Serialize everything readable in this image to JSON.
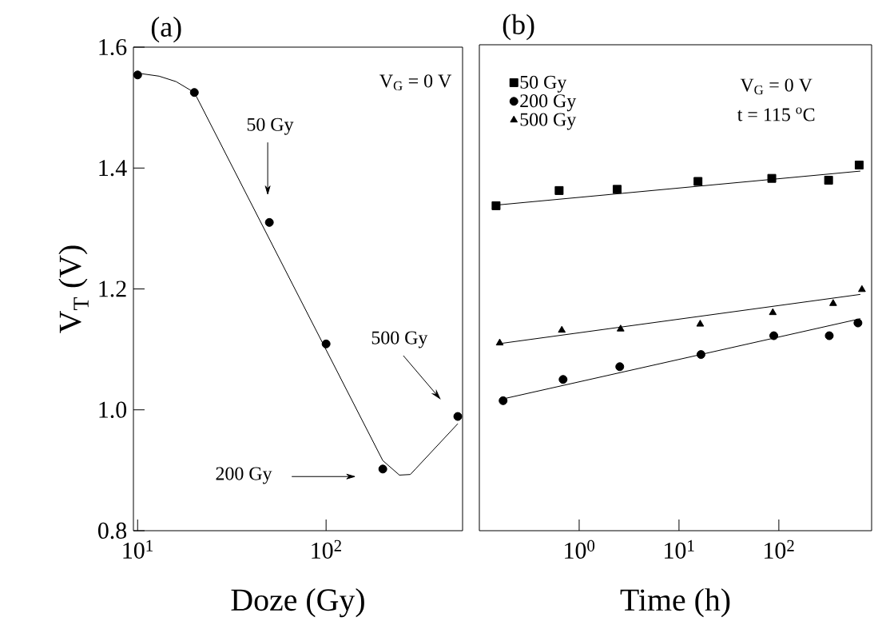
{
  "chart_data": [
    {
      "type": "scatter",
      "title": "(a)",
      "xlabel": "Doze (Gy)",
      "ylabel": "V$_{T}$ (V)",
      "log": "x",
      "xlim": [
        9.5,
        530
      ],
      "ylim": [
        0.8,
        1.6
      ],
      "xticks": [
        {
          "value": 10,
          "label": "10$^{1}$"
        },
        {
          "value": 100,
          "label": "10$^{2}$"
        }
      ],
      "yticks": [
        {
          "value": 0.8,
          "label": "0.8"
        },
        {
          "value": 1.0,
          "label": "1.0"
        },
        {
          "value": 1.2,
          "label": "1.2"
        },
        {
          "value": 1.4,
          "label": "1.4"
        },
        {
          "value": 1.6,
          "label": "1.6"
        }
      ],
      "series": [
        {
          "marker": "circle",
          "color": "#000000",
          "x": [
            10,
            20,
            50,
            100,
            200,
            500
          ],
          "values": [
            1.554,
            1.525,
            1.31,
            1.109,
            0.902,
            0.989
          ]
        },
        {
          "type": "line",
          "color": "#000000",
          "x": [
            10,
            13,
            16,
            20,
            200,
            245,
            280,
            298,
            500
          ],
          "values": [
            1.557,
            1.552,
            1.543,
            1.525,
            0.916,
            0.892,
            0.893,
            0.902,
            0.977
          ]
        }
      ],
      "annotations": [
        "V$_{G}$ = 0 V",
        "50 Gy",
        "200 Gy",
        "500 Gy"
      ]
    },
    {
      "type": "scatter",
      "title": "(b)",
      "xlabel": "Time (h)",
      "log": "x",
      "tick_labels": "x",
      "legend": "top left",
      "xlim": [
        0.1,
        850
      ],
      "ylim": [
        0.8,
        1.6
      ],
      "xticks": [
        {
          "value": 1,
          "label": "10$^{0}$"
        },
        {
          "value": 10,
          "label": "10$^{1}$"
        },
        {
          "value": 100,
          "label": "10$^{2}$"
        }
      ],
      "series": [
        {
          "name": "50 Gy",
          "marker": "square",
          "color": "#000000",
          "x": [
            0.147,
            0.63,
            2.4,
            15.5,
            85,
            315,
            638
          ],
          "values": [
            1.335,
            1.36,
            1.362,
            1.375,
            1.38,
            1.377,
            1.402
          ]
        },
        {
          "name": "200 Gy",
          "marker": "circle",
          "color": "#000000",
          "x": [
            0.173,
            0.69,
            2.55,
            16.6,
            89,
            320,
            620
          ],
          "values": [
            1.014,
            1.049,
            1.07,
            1.09,
            1.121,
            1.121,
            1.142
          ]
        },
        {
          "name": "500 Gy",
          "marker": "triangle",
          "color": "#000000",
          "x": [
            0.16,
            0.67,
            2.6,
            16.3,
            87,
            350,
            680
          ],
          "values": [
            1.109,
            1.13,
            1.132,
            1.14,
            1.159,
            1.174,
            1.197
          ]
        },
        {
          "type": "line",
          "color": "#000000",
          "x": [
            0.147,
            656
          ],
          "values": [
            1.336,
            1.392
          ]
        },
        {
          "type": "line",
          "color": "#000000",
          "x": [
            0.173,
            656
          ],
          "values": [
            1.017,
            1.149
          ]
        },
        {
          "type": "line",
          "color": "#000000",
          "x": [
            0.16,
            656
          ],
          "values": [
            1.108,
            1.189
          ]
        }
      ],
      "annotations": [
        "V$_{G}$ = 0 V",
        "t = 115 $^{o}$C"
      ]
    }
  ]
}
